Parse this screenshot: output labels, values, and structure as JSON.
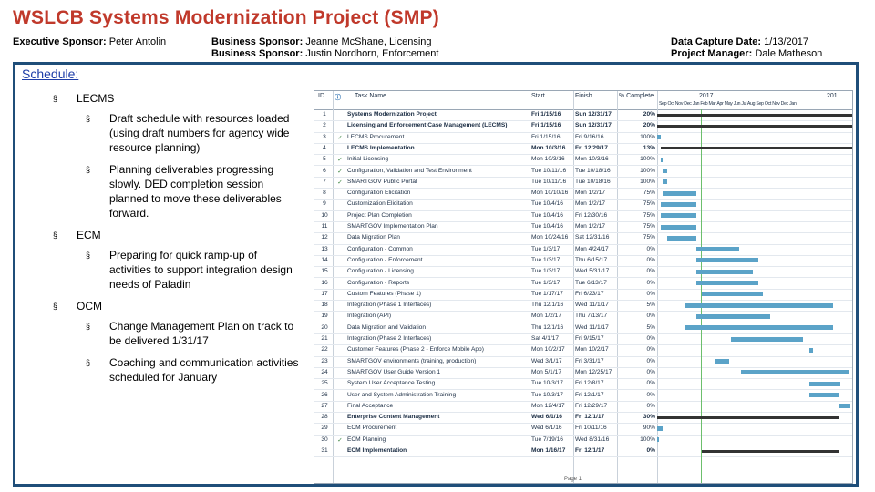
{
  "title": "WSLCB Systems Modernization Project (SMP)",
  "header": {
    "exec_label": "Executive Sponsor:",
    "exec_value": "Peter Antolin",
    "bs1_label": "Business Sponsor:",
    "bs1_value": "Jeanne McShane, Licensing",
    "bs2_label": "Business Sponsor:",
    "bs2_value": "Justin Nordhorn, Enforcement",
    "date_label": "Data Capture Date:",
    "date_value": "1/13/2017",
    "pm_label": "Project Manager:",
    "pm_value": "Dale Matheson"
  },
  "schedule": {
    "heading": "Schedule:",
    "marker": "§",
    "items": [
      {
        "label": "LECMS",
        "subs": [
          "Draft schedule with resources loaded (using draft numbers for agency wide resource planning)",
          "Planning deliverables progressing slowly.  DED completion session planned to move these deliverables forward."
        ]
      },
      {
        "label": "ECM",
        "subs": [
          "Preparing for quick ramp-up of activities to support integration design needs of Paladin"
        ]
      },
      {
        "label": "OCM",
        "subs": [
          "Change Management Plan on track to be delivered 1/31/17",
          "Coaching and communication activities scheduled for January"
        ]
      }
    ]
  },
  "gantt": {
    "columns": {
      "id": "ID",
      "name": "Task Name",
      "start": "Start",
      "finish": "Finish",
      "pct": "% Complete"
    },
    "years": [
      "2017",
      "201"
    ],
    "months": "Sep Oct Nov Dec Jan Feb Mar Apr May Jun Jul Aug Sep Oct Nov Dec Jan",
    "footer": "Page 1",
    "rows": [
      {
        "id": "1",
        "name": "Systems Modernization Project",
        "start": "Fri 1/15/16",
        "finish": "Sun 12/31/17",
        "pct": "20%",
        "bold": true,
        "done": false,
        "bar": [
          0.0,
          1.0
        ],
        "summary": true
      },
      {
        "id": "2",
        "name": "Licensing and Enforcement Case Management (LECMS)",
        "start": "Fri 1/15/16",
        "finish": "Sun 12/31/17",
        "pct": "20%",
        "bold": true,
        "done": false,
        "bar": [
          0.0,
          1.0
        ],
        "summary": true
      },
      {
        "id": "3",
        "name": "LECMS Procurement",
        "start": "Fri 1/15/16",
        "finish": "Fri 9/16/16",
        "pct": "100%",
        "bold": false,
        "done": true,
        "bar": [
          0.0,
          0.02
        ],
        "summary": false
      },
      {
        "id": "4",
        "name": "LECMS Implementation",
        "start": "Mon 10/3/16",
        "finish": "Fri 12/29/17",
        "pct": "13%",
        "bold": true,
        "done": false,
        "bar": [
          0.02,
          1.0
        ],
        "summary": true
      },
      {
        "id": "5",
        "name": "Initial Licensing",
        "start": "Mon 10/3/16",
        "finish": "Mon 10/3/16",
        "pct": "100%",
        "bold": false,
        "done": true,
        "bar": [
          0.02,
          0.03
        ],
        "summary": false
      },
      {
        "id": "6",
        "name": "Configuration, Validation and Test Environment",
        "start": "Tue 10/11/16",
        "finish": "Tue 10/18/16",
        "pct": "100%",
        "bold": false,
        "done": true,
        "bar": [
          0.03,
          0.05
        ],
        "summary": false
      },
      {
        "id": "7",
        "name": "SMARTGOV Public Portal",
        "start": "Tue 10/11/16",
        "finish": "Tue 10/18/16",
        "pct": "100%",
        "bold": false,
        "done": true,
        "bar": [
          0.03,
          0.05
        ],
        "summary": false
      },
      {
        "id": "8",
        "name": "Configuration Elicitation",
        "start": "Mon 10/10/16",
        "finish": "Mon 1/2/17",
        "pct": "75%",
        "bold": false,
        "done": false,
        "bar": [
          0.03,
          0.2
        ],
        "summary": false
      },
      {
        "id": "9",
        "name": "Customization Elicitation",
        "start": "Tue 10/4/16",
        "finish": "Mon 1/2/17",
        "pct": "75%",
        "bold": false,
        "done": false,
        "bar": [
          0.02,
          0.2
        ],
        "summary": false
      },
      {
        "id": "10",
        "name": "Project Plan Completion",
        "start": "Tue 10/4/16",
        "finish": "Fri 12/30/16",
        "pct": "75%",
        "bold": false,
        "done": false,
        "bar": [
          0.02,
          0.2
        ],
        "summary": false
      },
      {
        "id": "11",
        "name": "SMARTGOV Implementation Plan",
        "start": "Tue 10/4/16",
        "finish": "Mon 1/2/17",
        "pct": "75%",
        "bold": false,
        "done": false,
        "bar": [
          0.02,
          0.2
        ],
        "summary": false
      },
      {
        "id": "12",
        "name": "Data Migration Plan",
        "start": "Mon 10/24/16",
        "finish": "Sat 12/31/16",
        "pct": "75%",
        "bold": false,
        "done": false,
        "bar": [
          0.05,
          0.2
        ],
        "summary": false
      },
      {
        "id": "13",
        "name": "Configuration - Common",
        "start": "Tue 1/3/17",
        "finish": "Mon 4/24/17",
        "pct": "0%",
        "bold": false,
        "done": false,
        "bar": [
          0.2,
          0.42
        ],
        "summary": false
      },
      {
        "id": "14",
        "name": "Configuration - Enforcement",
        "start": "Tue 1/3/17",
        "finish": "Thu 6/15/17",
        "pct": "0%",
        "bold": false,
        "done": false,
        "bar": [
          0.2,
          0.52
        ],
        "summary": false
      },
      {
        "id": "15",
        "name": "Configuration - Licensing",
        "start": "Tue 1/3/17",
        "finish": "Wed 5/31/17",
        "pct": "0%",
        "bold": false,
        "done": false,
        "bar": [
          0.2,
          0.49
        ],
        "summary": false
      },
      {
        "id": "16",
        "name": "Configuration - Reports",
        "start": "Tue 1/3/17",
        "finish": "Tue 6/13/17",
        "pct": "0%",
        "bold": false,
        "done": false,
        "bar": [
          0.2,
          0.52
        ],
        "summary": false
      },
      {
        "id": "17",
        "name": "Custom Features (Phase 1)",
        "start": "Tue 1/17/17",
        "finish": "Fri 6/23/17",
        "pct": "0%",
        "bold": false,
        "done": false,
        "bar": [
          0.23,
          0.54
        ],
        "summary": false
      },
      {
        "id": "18",
        "name": "Integration (Phase 1 Interfaces)",
        "start": "Thu 12/1/16",
        "finish": "Wed 11/1/17",
        "pct": "5%",
        "bold": false,
        "done": false,
        "bar": [
          0.14,
          0.9
        ],
        "summary": false
      },
      {
        "id": "19",
        "name": "Integration (API)",
        "start": "Mon 1/2/17",
        "finish": "Thu 7/13/17",
        "pct": "0%",
        "bold": false,
        "done": false,
        "bar": [
          0.2,
          0.58
        ],
        "summary": false
      },
      {
        "id": "20",
        "name": "Data Migration and Validation",
        "start": "Thu 12/1/16",
        "finish": "Wed 11/1/17",
        "pct": "5%",
        "bold": false,
        "done": false,
        "bar": [
          0.14,
          0.9
        ],
        "summary": false
      },
      {
        "id": "21",
        "name": "Integration (Phase 2 Interfaces)",
        "start": "Sat 4/1/17",
        "finish": "Fri 9/15/17",
        "pct": "0%",
        "bold": false,
        "done": false,
        "bar": [
          0.38,
          0.75
        ],
        "summary": false
      },
      {
        "id": "22",
        "name": "Customer Features (Phase 2 - Enforce Mobile App)",
        "start": "Mon 10/2/17",
        "finish": "Mon 10/2/17",
        "pct": "0%",
        "bold": false,
        "done": false,
        "bar": [
          0.78,
          0.8
        ],
        "summary": false
      },
      {
        "id": "23",
        "name": "SMARTGOV environments (training, production)",
        "start": "Wed 3/1/17",
        "finish": "Fri 3/31/17",
        "pct": "0%",
        "bold": false,
        "done": false,
        "bar": [
          0.3,
          0.37
        ],
        "summary": false
      },
      {
        "id": "24",
        "name": "SMARTGOV User Guide Version 1",
        "start": "Mon 5/1/17",
        "finish": "Mon 12/25/17",
        "pct": "0%",
        "bold": false,
        "done": false,
        "bar": [
          0.43,
          0.98
        ],
        "summary": false
      },
      {
        "id": "25",
        "name": "System User Acceptance Testing",
        "start": "Tue 10/3/17",
        "finish": "Fri 12/8/17",
        "pct": "0%",
        "bold": false,
        "done": false,
        "bar": [
          0.78,
          0.94
        ],
        "summary": false
      },
      {
        "id": "26",
        "name": "User and System Administration Training",
        "start": "Tue 10/3/17",
        "finish": "Fri 12/1/17",
        "pct": "0%",
        "bold": false,
        "done": false,
        "bar": [
          0.78,
          0.93
        ],
        "summary": false
      },
      {
        "id": "27",
        "name": "Final Acceptance",
        "start": "Mon 12/4/17",
        "finish": "Fri 12/29/17",
        "pct": "0%",
        "bold": false,
        "done": false,
        "bar": [
          0.93,
          0.99
        ],
        "summary": false
      },
      {
        "id": "28",
        "name": "Enterprise Content Management",
        "start": "Wed 6/1/16",
        "finish": "Fri 12/1/17",
        "pct": "30%",
        "bold": true,
        "done": false,
        "bar": [
          0.0,
          0.93
        ],
        "summary": true
      },
      {
        "id": "29",
        "name": "ECM Procurement",
        "start": "Wed 6/1/16",
        "finish": "Fri 10/11/16",
        "pct": "90%",
        "bold": false,
        "done": false,
        "bar": [
          0.0,
          0.03
        ],
        "summary": false
      },
      {
        "id": "30",
        "name": "ECM Planning",
        "start": "Tue 7/19/16",
        "finish": "Wed 8/31/16",
        "pct": "100%",
        "bold": false,
        "done": true,
        "bar": [
          0.0,
          0.01
        ],
        "summary": false
      },
      {
        "id": "31",
        "name": "ECM Implementation",
        "start": "Mon 1/16/17",
        "finish": "Fri 12/1/17",
        "pct": "0%",
        "bold": true,
        "done": false,
        "bar": [
          0.23,
          0.93
        ],
        "summary": true
      }
    ]
  }
}
